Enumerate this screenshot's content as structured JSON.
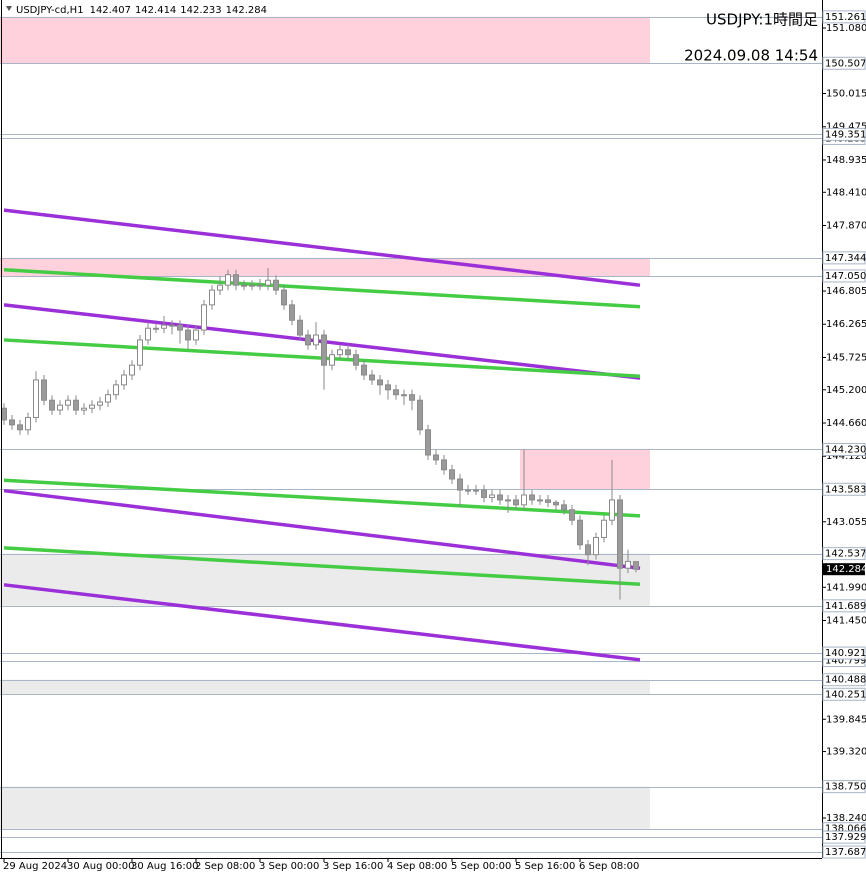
{
  "chart_data": {
    "type": "candlestick",
    "title": "USDJPY:1時間足",
    "subtitle": "2024.09.08 14:54",
    "symbol": "USDJPY-cd,H1",
    "up_color": "#ffffff",
    "down_color": "#9a9a9a",
    "wick_color": "#8a8a8a",
    "x": [
      0,
      2,
      4,
      6,
      8,
      10,
      12,
      14,
      16,
      18,
      20,
      22,
      24,
      26,
      28,
      30,
      32,
      34,
      36,
      38,
      40,
      42,
      44,
      46,
      48,
      50,
      52,
      54,
      56,
      58,
      60,
      62,
      64,
      66,
      68,
      70,
      72,
      74,
      76,
      78,
      80,
      82,
      84,
      86,
      88,
      90,
      92,
      94,
      96,
      98,
      100,
      102,
      104,
      106,
      108,
      110,
      112,
      114,
      116,
      118,
      120,
      122,
      124,
      126,
      128,
      130,
      132,
      134,
      136,
      138,
      140,
      142,
      144,
      146,
      148,
      150,
      152,
      154,
      156,
      158
    ],
    "open": [
      144.9,
      144.71,
      144.63,
      144.55,
      144.75,
      145.36,
      145.03,
      144.87,
      144.95,
      145.03,
      144.87,
      144.9,
      144.95,
      145.0,
      145.12,
      145.28,
      145.44,
      145.6,
      146.01,
      146.2,
      146.2,
      146.25,
      146.25,
      146.17,
      146.01,
      146.17,
      146.58,
      146.82,
      146.9,
      147.07,
      146.9,
      146.9,
      146.9,
      146.9,
      146.98,
      146.82,
      146.58,
      146.33,
      146.09,
      145.93,
      146.09,
      145.6,
      145.77,
      145.85,
      145.77,
      145.6,
      145.44,
      145.36,
      145.28,
      145.2,
      145.12,
      145.12,
      145.03,
      144.55,
      144.14,
      144.06,
      143.9,
      143.75,
      143.57,
      143.57,
      143.57,
      143.45,
      143.49,
      143.41,
      143.41,
      143.33,
      143.49,
      143.41,
      143.41,
      143.37,
      143.33,
      143.25,
      143.08,
      142.68,
      142.52,
      142.8,
      143.08,
      143.41,
      142.3,
      142.407
    ],
    "high": [
      144.98,
      144.79,
      144.71,
      144.83,
      145.5,
      145.44,
      145.11,
      145.03,
      145.11,
      145.11,
      144.98,
      145.03,
      145.08,
      145.2,
      145.36,
      145.52,
      145.68,
      146.09,
      146.3,
      146.28,
      146.4,
      146.33,
      146.33,
      146.25,
      146.25,
      146.66,
      146.9,
      147.05,
      147.15,
      147.15,
      146.98,
      146.98,
      147.0,
      147.18,
      147.06,
      146.9,
      146.66,
      146.41,
      146.17,
      146.3,
      146.17,
      145.85,
      145.93,
      145.93,
      145.85,
      145.68,
      145.52,
      145.44,
      145.36,
      145.28,
      145.2,
      145.2,
      145.11,
      144.63,
      144.22,
      144.14,
      143.98,
      143.83,
      143.65,
      143.65,
      143.65,
      143.57,
      143.57,
      143.49,
      143.49,
      144.23,
      143.57,
      143.49,
      143.49,
      143.41,
      143.41,
      143.33,
      143.16,
      142.76,
      142.88,
      143.16,
      144.06,
      143.49,
      142.6,
      142.414
    ],
    "low": [
      144.63,
      144.55,
      144.47,
      144.47,
      144.67,
      144.95,
      144.79,
      144.79,
      144.87,
      144.79,
      144.79,
      144.82,
      144.87,
      144.92,
      145.04,
      145.2,
      145.36,
      145.52,
      145.93,
      146.12,
      146.12,
      146.1,
      145.95,
      145.85,
      145.93,
      146.09,
      146.5,
      146.74,
      146.82,
      146.82,
      146.82,
      146.82,
      146.82,
      146.82,
      146.74,
      146.5,
      146.25,
      146.01,
      145.85,
      145.85,
      145.2,
      145.52,
      145.69,
      145.69,
      145.52,
      145.36,
      145.28,
      145.12,
      145.04,
      145.04,
      144.95,
      144.87,
      144.47,
      144.06,
      143.98,
      143.82,
      143.67,
      143.3,
      143.49,
      143.49,
      143.37,
      143.37,
      143.33,
      143.2,
      143.25,
      143.25,
      143.33,
      143.33,
      143.29,
      143.25,
      143.17,
      143.0,
      142.6,
      142.35,
      142.44,
      142.72,
      143.0,
      141.79,
      142.22,
      142.233
    ],
    "close": [
      144.71,
      144.63,
      144.55,
      144.75,
      145.36,
      145.03,
      144.87,
      144.95,
      145.03,
      144.87,
      144.9,
      144.95,
      145.0,
      145.12,
      145.28,
      145.44,
      145.6,
      146.01,
      146.2,
      146.2,
      146.25,
      146.25,
      146.17,
      146.01,
      146.17,
      146.58,
      146.82,
      146.9,
      147.07,
      146.9,
      146.9,
      146.9,
      146.9,
      146.98,
      146.82,
      146.58,
      146.33,
      146.09,
      145.93,
      146.09,
      145.6,
      145.77,
      145.85,
      145.77,
      145.6,
      145.44,
      145.36,
      145.28,
      145.2,
      145.12,
      145.12,
      145.03,
      144.55,
      144.14,
      144.06,
      143.9,
      143.75,
      143.57,
      143.57,
      143.57,
      143.45,
      143.49,
      143.41,
      143.41,
      143.33,
      143.49,
      143.41,
      143.41,
      143.37,
      143.33,
      143.25,
      143.08,
      142.68,
      142.52,
      142.8,
      143.08,
      143.41,
      142.3,
      142.41,
      142.284
    ],
    "xlim": [
      -1,
      204.5
    ],
    "xticks": [
      {
        "value": 0,
        "label": "29 Aug 2024"
      },
      {
        "value": 16,
        "label": "30 Aug 00:00"
      },
      {
        "value": 32,
        "label": "30 Aug 16:00"
      },
      {
        "value": 48,
        "label": "2 Sep 08:00"
      },
      {
        "value": 64,
        "label": "3 Sep 00:00"
      },
      {
        "value": 80,
        "label": "3 Sep 16:00"
      },
      {
        "value": 96,
        "label": "4 Sep 08:00"
      },
      {
        "value": 112,
        "label": "5 Sep 00:00"
      },
      {
        "value": 128,
        "label": "5 Sep 16:00"
      },
      {
        "value": 144,
        "label": "6 Sep 08:00"
      }
    ],
    "ylim": [
      137.59,
      151.535
    ],
    "yticks": [
      {
        "value": 151.08,
        "label": "151.080"
      },
      150.015,
      149.475,
      148.935,
      {
        "value": 148.41,
        "label": "148.410"
      },
      {
        "value": 147.87,
        "label": "147.870"
      },
      146.805,
      146.265,
      145.725,
      {
        "value": 145.2,
        "label": "145.200"
      },
      {
        "value": 144.66,
        "label": "144.660"
      },
      {
        "value": 144.12,
        "label": "144.120"
      },
      143.055,
      {
        "value": 141.99,
        "label": "141.990"
      },
      {
        "value": 141.45,
        "label": "141.450"
      },
      139.845,
      {
        "value": 139.32,
        "label": "139.320"
      },
      {
        "value": 138.24,
        "label": "138.240"
      }
    ],
    "zones": [
      {
        "from": 151.261,
        "to": 150.507,
        "color": "#ffd1dc",
        "xrange": [
          -1,
          161.5
        ]
      },
      {
        "from": 147.344,
        "to": 147.05,
        "color": "#ffd1dc",
        "xrange": [
          -1,
          161.5
        ]
      },
      {
        "from": 144.23,
        "to": 143.583,
        "color": "#ffd1dc",
        "xrange": [
          129,
          161.5
        ]
      },
      {
        "from": 142.537,
        "to": 141.689,
        "color": "#ebebeb",
        "xrange": [
          -1,
          161.5
        ]
      },
      {
        "from": 140.488,
        "to": 140.251,
        "color": "#ebebeb",
        "xrange": [
          -1,
          161.5
        ]
      },
      {
        "from": 138.75,
        "to": 138.066,
        "color": "#ebebeb",
        "xrange": [
          -1,
          161.5
        ]
      }
    ],
    "levels": [
      151.261,
      150.507,
      149.285,
      149.351,
      147.344,
      {
        "value": 147.05,
        "label": "147.050"
      },
      {
        "value": 144.23,
        "label": "144.230"
      },
      143.583,
      142.537,
      141.689,
      140.799,
      140.921,
      140.251,
      140.488,
      {
        "value": 138.75,
        "label": "138.750"
      },
      138.066,
      137.929,
      137.687
    ],
    "trend_lines": [
      {
        "color": "#9b30d9",
        "x": [
          0,
          159
        ],
        "values": [
          148.12,
          146.9
        ]
      },
      {
        "color": "#9b30d9",
        "x": [
          0,
          159
        ],
        "values": [
          146.58,
          145.39
        ]
      },
      {
        "color": "#9b30d9",
        "x": [
          0,
          159
        ],
        "values": [
          143.56,
          142.3
        ]
      },
      {
        "color": "#9b30d9",
        "x": [
          0,
          159
        ],
        "values": [
          142.03,
          140.81
        ]
      },
      {
        "color": "#44cc44",
        "x": [
          0,
          159
        ],
        "values": [
          147.15,
          146.55
        ]
      },
      {
        "color": "#44cc44",
        "x": [
          0,
          159
        ],
        "values": [
          146.01,
          145.42
        ]
      },
      {
        "color": "#44cc44",
        "x": [
          0,
          159
        ],
        "values": [
          143.73,
          143.15
        ]
      },
      {
        "color": "#44cc44",
        "x": [
          0,
          159
        ],
        "values": [
          142.63,
          142.04
        ]
      }
    ]
  }
}
